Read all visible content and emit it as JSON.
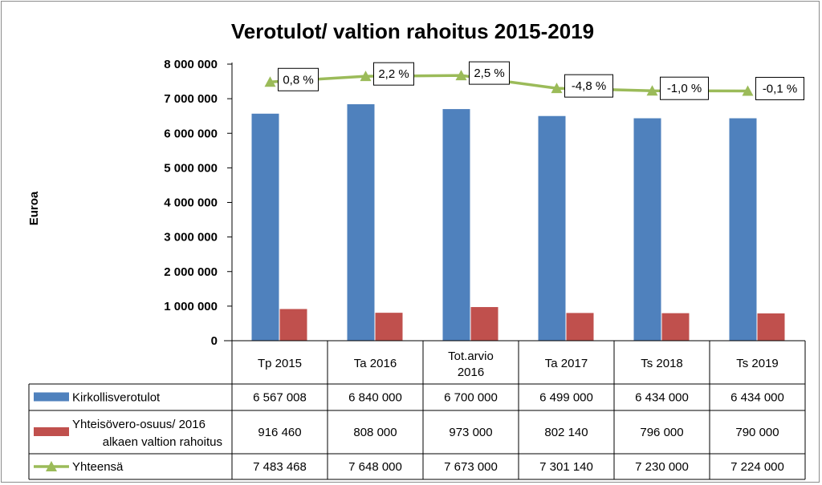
{
  "chart_data": {
    "type": "bar",
    "title": "Verotulot/ valtion rahoitus 2015-2019",
    "ylabel": "Euroa",
    "ylim": [
      0,
      8000000
    ],
    "yticks": [
      "0",
      "1 000 000",
      "2 000 000",
      "3 000 000",
      "4 000 000",
      "5 000 000",
      "6 000 000",
      "7 000 000",
      "8 000 000"
    ],
    "ytick_values": [
      0,
      1000000,
      2000000,
      3000000,
      4000000,
      5000000,
      6000000,
      7000000,
      8000000
    ],
    "categories": [
      [
        "Tp 2015"
      ],
      [
        "Ta 2016"
      ],
      [
        "Tot.arvio",
        "2016"
      ],
      [
        "Ta 2017"
      ],
      [
        "Ts 2018"
      ],
      [
        "Ts 2019"
      ]
    ],
    "series": [
      {
        "name": "Kirkollisverotulot",
        "type": "bar",
        "color": "#4f81bd",
        "values": [
          6567008,
          6840000,
          6700000,
          6499000,
          6434000,
          6434000
        ],
        "table_values": [
          "6 567 008",
          "6 840 000",
          "6 700 000",
          "6 499 000",
          "6 434 000",
          "6 434 000"
        ]
      },
      {
        "name": "Yhteisövero-osuus/ 2016 alkaen valtion rahoitus",
        "name_lines": [
          "Yhteisövero-osuus/ 2016",
          "alkaen valtion rahoitus"
        ],
        "type": "bar",
        "color": "#c0504d",
        "values": [
          916460,
          808000,
          973000,
          802140,
          796000,
          790000
        ],
        "table_values": [
          "916 460",
          "808 000",
          "973 000",
          "802 140",
          "796 000",
          "790 000"
        ]
      },
      {
        "name": "Yhteensä",
        "type": "line",
        "color": "#9bbb59",
        "values": [
          7483468,
          7648000,
          7673000,
          7301140,
          7230000,
          7224000
        ],
        "table_values": [
          "7 483 468",
          "7 648 000",
          "7 673 000",
          "7 301 140",
          "7 230 000",
          "7 224 000"
        ],
        "labels": [
          "0,8 %",
          "2,2 %",
          "2,5 %",
          "-4,8 %",
          "-1,0 %",
          "-0,1 %"
        ]
      }
    ],
    "grid": false,
    "legend": "data-table"
  }
}
